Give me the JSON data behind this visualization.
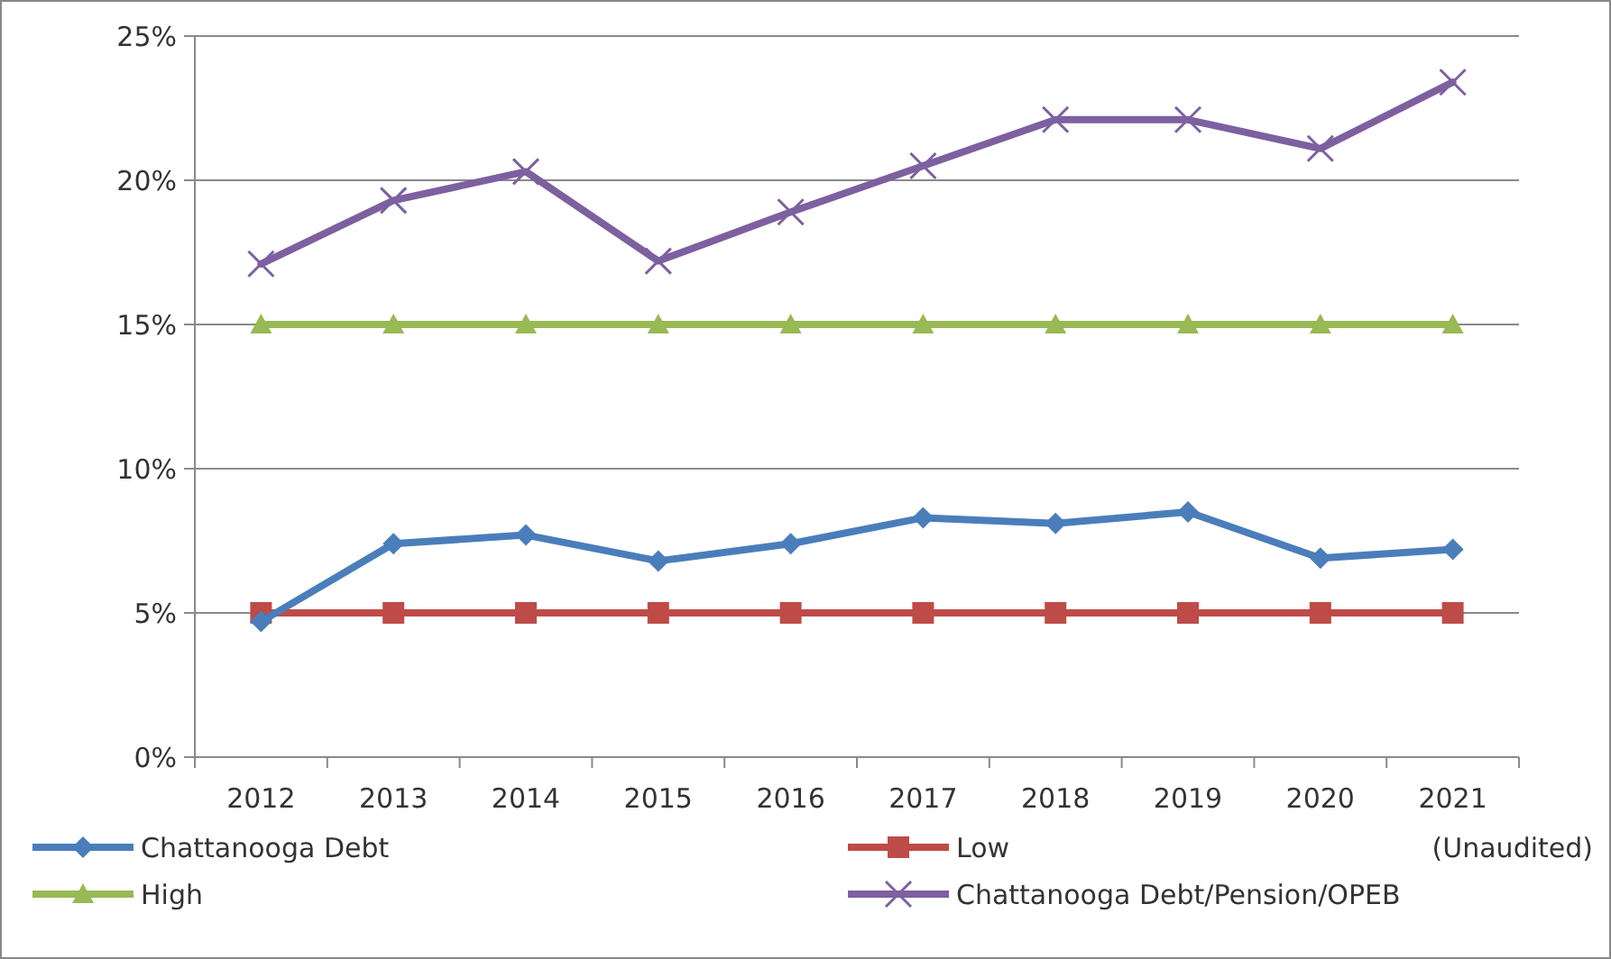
{
  "chart_data": {
    "type": "line",
    "categories": [
      "2012",
      "2013",
      "2014",
      "2015",
      "2016",
      "2017",
      "2018",
      "2019",
      "2020",
      "2021"
    ],
    "series": [
      {
        "name": "Chattanooga Debt",
        "color": "#4a7ebb",
        "marker": "diamond",
        "values": [
          4.7,
          7.4,
          7.7,
          6.8,
          7.4,
          8.3,
          8.1,
          8.5,
          6.9,
          7.2
        ]
      },
      {
        "name": "Low",
        "color": "#be4b48",
        "marker": "square",
        "values": [
          5,
          5,
          5,
          5,
          5,
          5,
          5,
          5,
          5,
          5
        ]
      },
      {
        "name": "High",
        "color": "#98b954",
        "marker": "triangle",
        "values": [
          15,
          15,
          15,
          15,
          15,
          15,
          15,
          15,
          15,
          15
        ]
      },
      {
        "name": "Chattanooga Debt/Pension/OPEB",
        "color": "#7d60a0",
        "marker": "cross",
        "values": [
          17.1,
          19.3,
          20.3,
          17.2,
          18.9,
          20.5,
          22.1,
          22.1,
          21.1,
          23.4
        ]
      }
    ],
    "ylim": [
      0,
      25
    ],
    "yticks": [
      {
        "value": 0,
        "label": "0%"
      },
      {
        "value": 5,
        "label": "5%"
      },
      {
        "value": 10,
        "label": "10%"
      },
      {
        "value": 15,
        "label": "15%"
      },
      {
        "value": 20,
        "label": "20%"
      },
      {
        "value": 25,
        "label": "25%"
      }
    ],
    "grid": "y",
    "legend": "bottom",
    "annotations": [
      "(Unaudited)"
    ]
  }
}
